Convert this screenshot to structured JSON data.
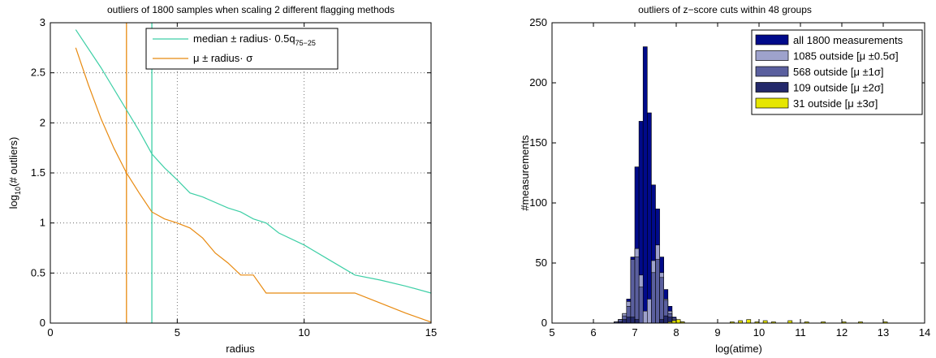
{
  "chart_data": [
    {
      "type": "line",
      "title": "outliers of 1800 samples when scaling 2 different flagging methods",
      "xlabel": "radius",
      "ylabel_main": "log",
      "ylabel_sub": "10",
      "ylabel_rest": "(# outliers)",
      "xlim": [
        0,
        15
      ],
      "ylim": [
        0,
        3
      ],
      "xticks": [
        "0",
        "5",
        "10",
        "15"
      ],
      "xtick_values": [
        0,
        5,
        10,
        15
      ],
      "yticks": [
        "0",
        "0.5",
        "1",
        "1.5",
        "2",
        "2.5",
        "3"
      ],
      "ytick_values": [
        0,
        0.5,
        1,
        1.5,
        2,
        2.5,
        3
      ],
      "grid": true,
      "legend_position": "top-right",
      "series": [
        {
          "name": "median ± radius· 0.5q",
          "name_sub": "75−25",
          "color": "#3ecfa6",
          "x": [
            1,
            2,
            3,
            3.5,
            4,
            4.5,
            5,
            5.5,
            6,
            7,
            7.5,
            8,
            8.5,
            9,
            10,
            11,
            12,
            13,
            14,
            15
          ],
          "y": [
            2.93,
            2.55,
            2.13,
            1.92,
            1.69,
            1.55,
            1.43,
            1.3,
            1.26,
            1.15,
            1.11,
            1.04,
            1,
            0.9,
            0.78,
            0.63,
            0.48,
            0.43,
            0.37,
            0.3
          ]
        },
        {
          "name": "μ ± radius· σ",
          "color": "#e88a10",
          "x": [
            1,
            1.5,
            2,
            2.5,
            3,
            3.5,
            4,
            4.5,
            5,
            5.5,
            6,
            6.5,
            7,
            7.5,
            8,
            8.5,
            9,
            10,
            11,
            12,
            13,
            14,
            15
          ],
          "y": [
            2.75,
            2.38,
            2.04,
            1.75,
            1.5,
            1.3,
            1.11,
            1.04,
            1,
            0.95,
            0.85,
            0.7,
            0.6,
            0.48,
            0.48,
            0.3,
            0.3,
            0.3,
            0.3,
            0.3,
            0.2,
            0.1,
            0.01
          ]
        }
      ],
      "vlines": [
        {
          "x": 3,
          "color": "#e88a10"
        },
        {
          "x": 4,
          "color": "#3ecfa6"
        }
      ]
    },
    {
      "type": "bar",
      "title": "outliers of z−score cuts within 48 groups",
      "xlabel": "log(atime)",
      "ylabel": "#measurements",
      "xlim": [
        5,
        14
      ],
      "ylim": [
        0,
        250
      ],
      "xticks": [
        "5",
        "6",
        "7",
        "8",
        "9",
        "10",
        "11",
        "12",
        "13",
        "14"
      ],
      "xtick_values": [
        5,
        6,
        7,
        8,
        9,
        10,
        11,
        12,
        13,
        14
      ],
      "yticks": [
        "0",
        "50",
        "100",
        "150",
        "200",
        "250"
      ],
      "ytick_values": [
        0,
        50,
        100,
        150,
        200,
        250
      ],
      "grid": false,
      "legend_position": "top-right",
      "bin_start": 6.5,
      "bin_width": 0.1,
      "series": [
        {
          "name": "all 1800 measurements",
          "color": "#000a8a",
          "values": [
            1,
            3,
            8,
            20,
            55,
            130,
            168,
            230,
            175,
            115,
            95,
            55,
            28,
            14,
            5,
            2,
            1
          ]
        },
        {
          "name": "1085 outside [μ ±0.5σ]",
          "color": "#9ea2cc",
          "values": [
            1,
            3,
            8,
            18,
            45,
            62,
            40,
            10,
            20,
            52,
            65,
            42,
            20,
            10,
            4,
            2,
            1
          ]
        },
        {
          "name": "568 outside [μ ±1σ]",
          "color": "#5a5f9e",
          "values": [
            1,
            3,
            6,
            14,
            53,
            55,
            30,
            0,
            0,
            42,
            53,
            38,
            19,
            8,
            3,
            1,
            0
          ]
        },
        {
          "name": "109 outside [μ ±2σ]",
          "color": "#23286a",
          "values": [
            0,
            1,
            3,
            5,
            5,
            3,
            0,
            0,
            0,
            0,
            0,
            3,
            6,
            5,
            2,
            1,
            0
          ]
        },
        {
          "name": "31 outside [μ ±3σ]",
          "color": "#e6e600",
          "values": [
            0,
            0,
            0,
            0,
            0,
            0,
            0,
            0,
            0,
            0,
            0,
            0,
            0,
            1,
            2,
            3,
            1
          ]
        }
      ],
      "tail_bins": {
        "x": [
          9.3,
          9.5,
          9.7,
          9.9,
          10.1,
          10.3,
          10.7,
          11.1,
          11.5,
          12.0,
          12.4,
          13.0
        ],
        "values": [
          1,
          2,
          3,
          1,
          2,
          1,
          2,
          1,
          1,
          1,
          1,
          1
        ],
        "color": "#e6e600"
      }
    }
  ]
}
